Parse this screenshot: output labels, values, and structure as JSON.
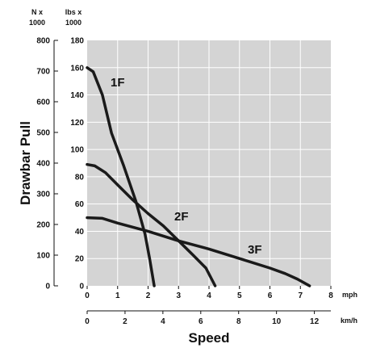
{
  "chart_data": {
    "type": "line",
    "title": "",
    "plot_background": "#d4d4d4",
    "grid": true,
    "grid_color": "#ffffff",
    "line_color": "#1a1a1a",
    "xlabel": "Speed",
    "ylabel": "Drawbar Pull",
    "x_axes": [
      {
        "unit": "mph",
        "ticks": [
          "0",
          "1",
          "2",
          "3",
          "4",
          "5",
          "6",
          "7",
          "8"
        ],
        "range": [
          0,
          8
        ]
      },
      {
        "unit": "km/h",
        "ticks": [
          "0",
          "2",
          "4",
          "6",
          "8",
          "10",
          "12"
        ],
        "range": [
          0,
          12.87
        ]
      }
    ],
    "y_axes": [
      {
        "header": [
          "N x",
          "1000"
        ],
        "ticks": [
          "0",
          "100",
          "200",
          "300",
          "400",
          "500",
          "600",
          "700",
          "800"
        ],
        "range": [
          0,
          800
        ]
      },
      {
        "header": [
          "lbs x",
          "1000"
        ],
        "ticks": [
          "0",
          "20",
          "40",
          "60",
          "80",
          "100",
          "120",
          "140",
          "160",
          "180"
        ],
        "range": [
          0,
          180
        ]
      }
    ],
    "series": [
      {
        "name": "1F",
        "x": [
          0,
          0.2,
          0.5,
          0.8,
          1.2,
          1.6,
          1.9,
          2.05,
          2.2
        ],
        "y": [
          160,
          157,
          140,
          112,
          88,
          62,
          38,
          20,
          0
        ]
      },
      {
        "name": "2F",
        "x": [
          0,
          0.25,
          0.6,
          1.0,
          1.5,
          2.0,
          2.5,
          3.0,
          3.5,
          3.9,
          4.2
        ],
        "y": [
          89,
          88,
          83,
          74,
          63,
          53,
          44,
          33,
          22,
          13,
          0
        ]
      },
      {
        "name": "3F",
        "x": [
          0,
          0.5,
          1.0,
          2.0,
          3.0,
          4.0,
          5.0,
          6.0,
          6.5,
          6.9,
          7.3
        ],
        "y": [
          50,
          49.5,
          46,
          40,
          33,
          27,
          20,
          13,
          9,
          5,
          0
        ]
      }
    ]
  }
}
